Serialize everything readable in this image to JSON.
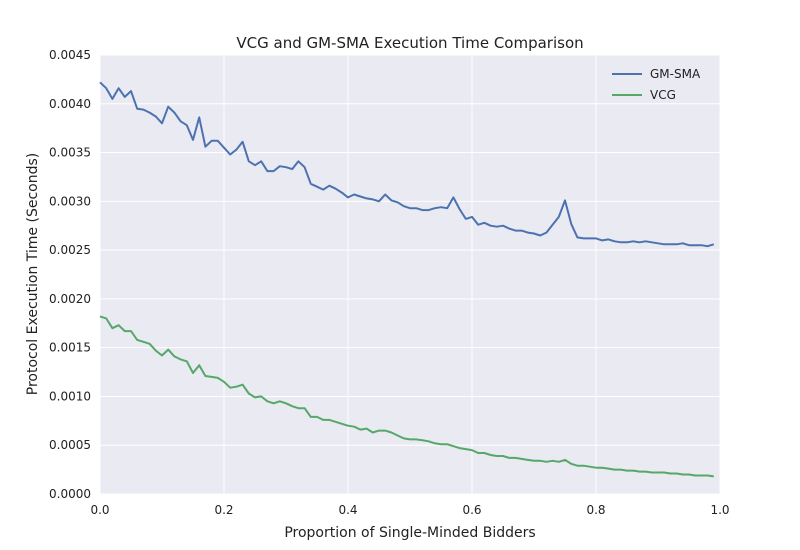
{
  "chart_data": {
    "type": "line",
    "title": "VCG and GM-SMA Execution Time Comparison",
    "xlabel": "Proportion of Single-Minded Bidders",
    "ylabel": "Protocol Execution Time (Seconds)",
    "xlim": [
      0.0,
      1.0
    ],
    "ylim": [
      0.0,
      0.0045
    ],
    "xticks": [
      0.0,
      0.2,
      0.4,
      0.6,
      0.8,
      1.0
    ],
    "xtick_labels": [
      "0.0",
      "0.2",
      "0.4",
      "0.6",
      "0.8",
      "1.0"
    ],
    "yticks": [
      0.0,
      0.0005,
      0.001,
      0.0015,
      0.002,
      0.0025,
      0.003,
      0.0035,
      0.004,
      0.0045
    ],
    "ytick_labels": [
      "0.0000",
      "0.0005",
      "0.0010",
      "0.0015",
      "0.0020",
      "0.0025",
      "0.0030",
      "0.0035",
      "0.0040",
      "0.0045"
    ],
    "grid": true,
    "legend_position": "top-right",
    "background": "#eaeaf2",
    "series": [
      {
        "name": "GM-SMA",
        "color": "#4c72b0",
        "x": [
          0.0,
          0.01,
          0.02,
          0.03,
          0.04,
          0.05,
          0.06,
          0.07,
          0.08,
          0.09,
          0.1,
          0.11,
          0.12,
          0.13,
          0.14,
          0.15,
          0.16,
          0.17,
          0.18,
          0.19,
          0.2,
          0.21,
          0.22,
          0.23,
          0.24,
          0.25,
          0.26,
          0.27,
          0.28,
          0.29,
          0.3,
          0.31,
          0.32,
          0.33,
          0.34,
          0.35,
          0.36,
          0.37,
          0.38,
          0.39,
          0.4,
          0.41,
          0.42,
          0.43,
          0.44,
          0.45,
          0.46,
          0.47,
          0.48,
          0.49,
          0.5,
          0.51,
          0.52,
          0.53,
          0.54,
          0.55,
          0.56,
          0.57,
          0.58,
          0.59,
          0.6,
          0.61,
          0.62,
          0.63,
          0.64,
          0.65,
          0.66,
          0.67,
          0.68,
          0.69,
          0.7,
          0.71,
          0.72,
          0.73,
          0.74,
          0.75,
          0.76,
          0.77,
          0.78,
          0.79,
          0.8,
          0.81,
          0.82,
          0.83,
          0.84,
          0.85,
          0.86,
          0.87,
          0.88,
          0.89,
          0.9,
          0.91,
          0.92,
          0.93,
          0.94,
          0.95,
          0.96,
          0.97,
          0.98,
          0.99
        ],
        "y": [
          0.00422,
          0.00416,
          0.00405,
          0.00416,
          0.00407,
          0.00413,
          0.00395,
          0.00394,
          0.00391,
          0.00387,
          0.0038,
          0.00397,
          0.00391,
          0.00382,
          0.00378,
          0.00363,
          0.00386,
          0.00356,
          0.00362,
          0.00362,
          0.00355,
          0.00348,
          0.00353,
          0.00361,
          0.00341,
          0.00337,
          0.00341,
          0.00331,
          0.00331,
          0.00336,
          0.00335,
          0.00333,
          0.00341,
          0.00335,
          0.00318,
          0.00315,
          0.00312,
          0.00316,
          0.00313,
          0.00309,
          0.00304,
          0.00307,
          0.00305,
          0.00303,
          0.00302,
          0.003,
          0.00307,
          0.00301,
          0.00299,
          0.00295,
          0.00293,
          0.00293,
          0.00291,
          0.00291,
          0.00293,
          0.00294,
          0.00293,
          0.00304,
          0.00292,
          0.00282,
          0.00284,
          0.00276,
          0.00278,
          0.00275,
          0.00274,
          0.00275,
          0.00272,
          0.0027,
          0.0027,
          0.00268,
          0.00267,
          0.00265,
          0.00268,
          0.00276,
          0.00284,
          0.00301,
          0.00277,
          0.00263,
          0.00262,
          0.00262,
          0.00262,
          0.0026,
          0.00261,
          0.00259,
          0.00258,
          0.00258,
          0.00259,
          0.00258,
          0.00259,
          0.00258,
          0.00257,
          0.00256,
          0.00256,
          0.00256,
          0.00257,
          0.00255,
          0.00255,
          0.00255,
          0.00254,
          0.00256
        ]
      },
      {
        "name": "VCG",
        "color": "#55a868",
        "x": [
          0.0,
          0.01,
          0.02,
          0.03,
          0.04,
          0.05,
          0.06,
          0.07,
          0.08,
          0.09,
          0.1,
          0.11,
          0.12,
          0.13,
          0.14,
          0.15,
          0.16,
          0.17,
          0.18,
          0.19,
          0.2,
          0.21,
          0.22,
          0.23,
          0.24,
          0.25,
          0.26,
          0.27,
          0.28,
          0.29,
          0.3,
          0.31,
          0.32,
          0.33,
          0.34,
          0.35,
          0.36,
          0.37,
          0.38,
          0.39,
          0.4,
          0.41,
          0.42,
          0.43,
          0.44,
          0.45,
          0.46,
          0.47,
          0.48,
          0.49,
          0.5,
          0.51,
          0.52,
          0.53,
          0.54,
          0.55,
          0.56,
          0.57,
          0.58,
          0.59,
          0.6,
          0.61,
          0.62,
          0.63,
          0.64,
          0.65,
          0.66,
          0.67,
          0.68,
          0.69,
          0.7,
          0.71,
          0.72,
          0.73,
          0.74,
          0.75,
          0.76,
          0.77,
          0.78,
          0.79,
          0.8,
          0.81,
          0.82,
          0.83,
          0.84,
          0.85,
          0.86,
          0.87,
          0.88,
          0.89,
          0.9,
          0.91,
          0.92,
          0.93,
          0.94,
          0.95,
          0.96,
          0.97,
          0.98,
          0.99
        ],
        "y": [
          0.00182,
          0.0018,
          0.0017,
          0.00173,
          0.00167,
          0.00167,
          0.00158,
          0.00156,
          0.00154,
          0.00147,
          0.00142,
          0.00148,
          0.00141,
          0.00138,
          0.00136,
          0.00124,
          0.00132,
          0.00121,
          0.0012,
          0.00119,
          0.00115,
          0.00109,
          0.0011,
          0.00112,
          0.00103,
          0.00099,
          0.001,
          0.00095,
          0.00093,
          0.00095,
          0.00093,
          0.0009,
          0.00088,
          0.00088,
          0.00079,
          0.00079,
          0.00076,
          0.00076,
          0.00074,
          0.00072,
          0.0007,
          0.00069,
          0.00066,
          0.00067,
          0.00063,
          0.00065,
          0.00065,
          0.00063,
          0.0006,
          0.00057,
          0.00056,
          0.00056,
          0.00055,
          0.00054,
          0.00052,
          0.00051,
          0.00051,
          0.00049,
          0.00047,
          0.00046,
          0.00045,
          0.00042,
          0.00042,
          0.0004,
          0.00039,
          0.00039,
          0.00037,
          0.00037,
          0.00036,
          0.00035,
          0.00034,
          0.00034,
          0.00033,
          0.00034,
          0.00033,
          0.00035,
          0.00031,
          0.00029,
          0.00029,
          0.00028,
          0.00027,
          0.00027,
          0.00026,
          0.00025,
          0.00025,
          0.00024,
          0.00024,
          0.00023,
          0.00023,
          0.00022,
          0.00022,
          0.00022,
          0.00021,
          0.00021,
          0.0002,
          0.0002,
          0.00019,
          0.00019,
          0.00019,
          0.00018
        ]
      }
    ]
  }
}
